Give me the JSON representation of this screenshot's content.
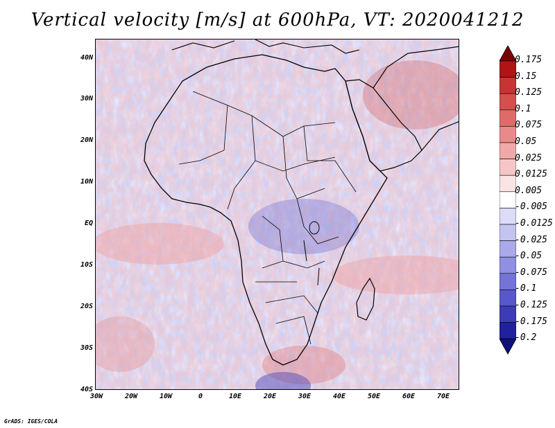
{
  "title": "Vertical velocity [m/s] at 600hPa, VT: 2020041212",
  "credit": "GrADS: IGES/COLA",
  "map": {
    "lon_ticks": [
      "30W",
      "20W",
      "10W",
      "0",
      "10E",
      "20E",
      "30E",
      "40E",
      "50E",
      "60E",
      "70E"
    ],
    "lat_ticks": [
      "40N",
      "30N",
      "20N",
      "10N",
      "EQ",
      "10S",
      "20S",
      "30S",
      "40S"
    ],
    "lon_range": [
      -30,
      75
    ],
    "lat_range": [
      -40,
      45
    ]
  },
  "colorbar": {
    "labels": [
      "0.175",
      "0.15",
      "0.125",
      "0.1",
      "0.075",
      "0.05",
      "0.025",
      "0.0125",
      "0.005",
      "-0.005",
      "-0.0125",
      "-0.025",
      "-0.05",
      "-0.075",
      "-0.1",
      "-0.125",
      "-0.175",
      "-0.2"
    ],
    "colors": [
      "#7a0000",
      "#b01515",
      "#c83434",
      "#d54f4f",
      "#e06a6a",
      "#e88a8a",
      "#f0a8a8",
      "#f6c6c6",
      "#fbe4e4",
      "#ffffff",
      "#dcdcf8",
      "#c4c4f0",
      "#aaaaea",
      "#9090e2",
      "#7474d8",
      "#5858cc",
      "#3c3cb8",
      "#2020a0",
      "#10107a"
    ]
  }
}
